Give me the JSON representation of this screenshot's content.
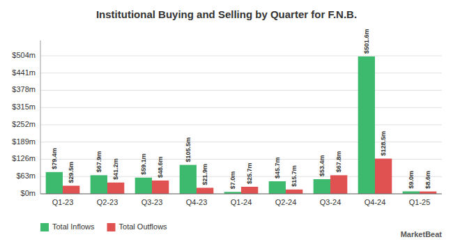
{
  "chart_data": {
    "type": "bar",
    "title": "Institutional Buying and Selling by Quarter for F.N.B.",
    "categories": [
      "Q1-23",
      "Q2-23",
      "Q3-23",
      "Q4-23",
      "Q1-24",
      "Q2-24",
      "Q3-24",
      "Q4-24",
      "Q1-25"
    ],
    "series": [
      {
        "name": "Total Inflows",
        "color": "#3dba6e",
        "values": [
          79.4,
          67.9,
          59.1,
          105.5,
          7.0,
          45.7,
          53.4,
          501.6,
          9.0
        ],
        "value_labels": [
          "$79.4m",
          "$67.9m",
          "$59.1m",
          "$105.5m",
          "$7.0m",
          "$45.7m",
          "$53.4m",
          "$501.6m",
          "$9.0m"
        ]
      },
      {
        "name": "Total Outflows",
        "color": "#e05252",
        "values": [
          29.5,
          41.2,
          48.6,
          21.9,
          25.7,
          15.7,
          67.8,
          128.5,
          8.6
        ],
        "value_labels": [
          "$29.5m",
          "$41.2m",
          "$48.6m",
          "$21.9m",
          "$25.7m",
          "$15.7m",
          "$67.8m",
          "$128.5m",
          "$8.6m"
        ]
      }
    ],
    "ylim": [
      0,
      560
    ],
    "yticks": [
      {
        "value": 0,
        "label": "$0m"
      },
      {
        "value": 63,
        "label": "$63m"
      },
      {
        "value": 126,
        "label": "$126m"
      },
      {
        "value": 189,
        "label": "$189m"
      },
      {
        "value": 252,
        "label": "$252m"
      },
      {
        "value": 315,
        "label": "$315m"
      },
      {
        "value": 378,
        "label": "$378m"
      },
      {
        "value": 441,
        "label": "$441m"
      },
      {
        "value": 504,
        "label": "$504m"
      }
    ],
    "grid": true,
    "legend": "lower left",
    "data_labels": true,
    "annotations": [
      "MarketBeat"
    ]
  }
}
